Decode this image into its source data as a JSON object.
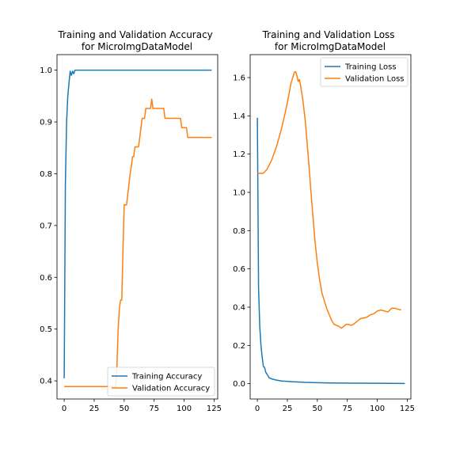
{
  "colors": {
    "training": "#1f77b4",
    "validation": "#ff7f0e",
    "axes": "#000000",
    "legend_border": "#cccccc"
  },
  "chart_data": [
    {
      "type": "line",
      "title": "Training and Validation Accuracy\nfor MicroImgDataModel",
      "xlabel": "",
      "ylabel": "",
      "xlim": [
        -6,
        128
      ],
      "ylim": [
        0.365,
        1.03
      ],
      "xticks": [
        0,
        25,
        50,
        75,
        100,
        125
      ],
      "yticks": [
        0.4,
        0.5,
        0.6,
        0.7,
        0.8,
        0.9,
        1.0
      ],
      "ytick_labels": [
        "0.4",
        "0.5",
        "0.6",
        "0.7",
        "0.8",
        "0.9",
        "1.0"
      ],
      "grid": false,
      "legend_position": "lower right",
      "series": [
        {
          "name": "Training Accuracy",
          "color": "#1f77b4",
          "points": [
            [
              0,
              0.405
            ],
            [
              1,
              0.78
            ],
            [
              2,
              0.9
            ],
            [
              3,
              0.95
            ],
            [
              4,
              0.975
            ],
            [
              5,
              0.998
            ],
            [
              6,
              0.99
            ],
            [
              7,
              0.998
            ],
            [
              8,
              0.993
            ],
            [
              9,
              1.0
            ],
            [
              123,
              1.0
            ]
          ]
        },
        {
          "name": "Validation Accuracy",
          "color": "#ff7f0e",
          "points": [
            [
              0,
              0.389
            ],
            [
              43,
              0.389
            ],
            [
              44,
              0.43
            ],
            [
              45,
              0.5
            ],
            [
              46,
              0.54
            ],
            [
              47,
              0.556
            ],
            [
              48,
              0.556
            ],
            [
              49,
              0.65
            ],
            [
              50,
              0.74
            ],
            [
              52,
              0.74
            ],
            [
              53,
              0.76
            ],
            [
              54,
              0.78
            ],
            [
              55,
              0.8
            ],
            [
              56,
              0.815
            ],
            [
              57,
              0.833
            ],
            [
              58,
              0.833
            ],
            [
              59,
              0.852
            ],
            [
              62,
              0.852
            ],
            [
              63,
              0.87
            ],
            [
              64,
              0.889
            ],
            [
              65,
              0.907
            ],
            [
              67,
              0.907
            ],
            [
              68,
              0.926
            ],
            [
              72,
              0.926
            ],
            [
              73,
              0.944
            ],
            [
              74,
              0.926
            ],
            [
              83,
              0.926
            ],
            [
              84,
              0.907
            ],
            [
              97,
              0.907
            ],
            [
              98,
              0.889
            ],
            [
              102,
              0.889
            ],
            [
              103,
              0.87
            ],
            [
              123,
              0.87
            ]
          ]
        }
      ]
    },
    {
      "type": "line",
      "title": "Training and Validation Loss\nfor MicroImgDataModel",
      "xlabel": "",
      "ylabel": "",
      "xlim": [
        -6,
        128
      ],
      "ylim": [
        -0.08,
        1.72
      ],
      "xticks": [
        0,
        25,
        50,
        75,
        100,
        125
      ],
      "yticks": [
        0.0,
        0.2,
        0.4,
        0.6,
        0.8,
        1.0,
        1.2,
        1.4,
        1.6
      ],
      "ytick_labels": [
        "0.0",
        "0.2",
        "0.4",
        "0.6",
        "0.8",
        "1.0",
        "1.2",
        "1.4",
        "1.6"
      ],
      "grid": false,
      "legend_position": "upper right",
      "series": [
        {
          "name": "Training Loss",
          "color": "#1f77b4",
          "points": [
            [
              0,
              1.39
            ],
            [
              1,
              0.5
            ],
            [
              2,
              0.3
            ],
            [
              3,
              0.2
            ],
            [
              4,
              0.14
            ],
            [
              5,
              0.09
            ],
            [
              6,
              0.085
            ],
            [
              7,
              0.06
            ],
            [
              8,
              0.05
            ],
            [
              9,
              0.04
            ],
            [
              10,
              0.03
            ],
            [
              12,
              0.025
            ],
            [
              15,
              0.02
            ],
            [
              20,
              0.014
            ],
            [
              30,
              0.01
            ],
            [
              40,
              0.007
            ],
            [
              60,
              0.004
            ],
            [
              80,
              0.003
            ],
            [
              100,
              0.002
            ],
            [
              123,
              0.001
            ]
          ]
        },
        {
          "name": "Validation Loss",
          "color": "#ff7f0e",
          "points": [
            [
              0,
              1.1
            ],
            [
              5,
              1.1
            ],
            [
              8,
              1.12
            ],
            [
              12,
              1.17
            ],
            [
              16,
              1.24
            ],
            [
              20,
              1.33
            ],
            [
              23,
              1.41
            ],
            [
              26,
              1.5
            ],
            [
              28,
              1.57
            ],
            [
              30,
              1.61
            ],
            [
              31,
              1.63
            ],
            [
              32,
              1.63
            ],
            [
              33,
              1.61
            ],
            [
              34,
              1.58
            ],
            [
              35,
              1.59
            ],
            [
              36,
              1.56
            ],
            [
              38,
              1.48
            ],
            [
              40,
              1.37
            ],
            [
              42,
              1.22
            ],
            [
              44,
              1.06
            ],
            [
              46,
              0.9
            ],
            [
              48,
              0.75
            ],
            [
              50,
              0.63
            ],
            [
              52,
              0.54
            ],
            [
              54,
              0.47
            ],
            [
              56,
              0.43
            ],
            [
              58,
              0.39
            ],
            [
              60,
              0.36
            ],
            [
              62,
              0.33
            ],
            [
              64,
              0.31
            ],
            [
              66,
              0.305
            ],
            [
              68,
              0.3
            ],
            [
              70,
              0.29
            ],
            [
              72,
              0.3
            ],
            [
              74,
              0.31
            ],
            [
              76,
              0.31
            ],
            [
              78,
              0.305
            ],
            [
              80,
              0.31
            ],
            [
              82,
              0.32
            ],
            [
              84,
              0.33
            ],
            [
              86,
              0.34
            ],
            [
              90,
              0.345
            ],
            [
              92,
              0.35
            ],
            [
              94,
              0.36
            ],
            [
              97,
              0.365
            ],
            [
              100,
              0.38
            ],
            [
              103,
              0.385
            ],
            [
              106,
              0.38
            ],
            [
              109,
              0.375
            ],
            [
              112,
              0.395
            ],
            [
              114,
              0.395
            ],
            [
              117,
              0.39
            ],
            [
              120,
              0.385
            ]
          ]
        }
      ]
    }
  ]
}
